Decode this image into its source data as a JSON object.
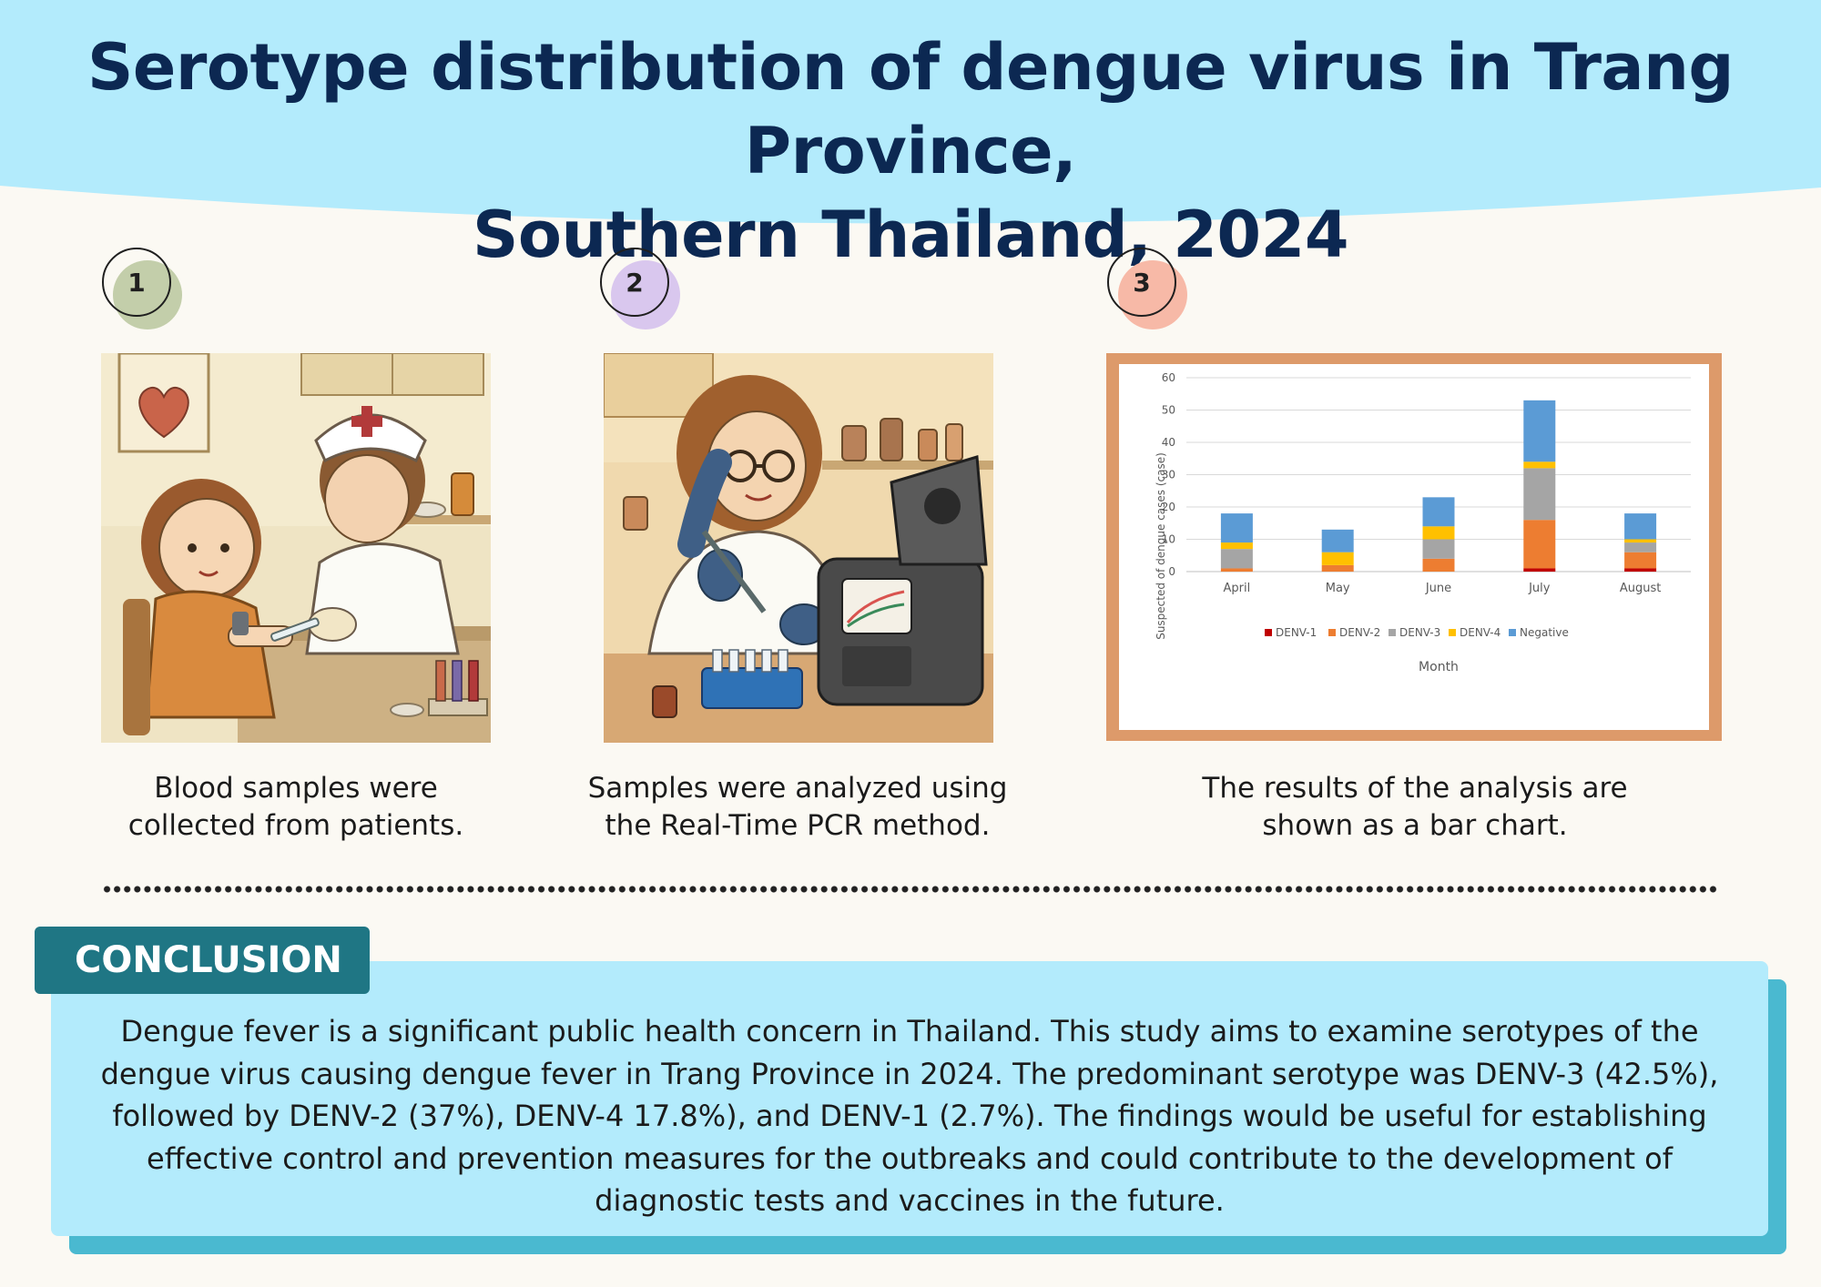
{
  "title": {
    "line1": "Serotype distribution of dengue virus in Trang Province,",
    "line2": "Southern Thailand, 2024"
  },
  "colors": {
    "header_bg": "#b3ebfc",
    "title": "#0c2852",
    "step1": "#c3ceaa",
    "step2": "#d9c7ee",
    "step3": "#f7b9a7",
    "conclusion_tab": "#1f7684",
    "conclusion_box": "#b3ebfc",
    "conclusion_shadow": "#4ab9d0",
    "chart_frame": "#dd9a6a"
  },
  "steps": [
    {
      "number": "1",
      "caption_line1": "Blood samples were",
      "caption_line2": "collected from patients.",
      "illustration": "nurse-drawing-blood-from-child"
    },
    {
      "number": "2",
      "caption_line1": "Samples were analyzed using",
      "caption_line2": "the Real-Time PCR method.",
      "illustration": "scientist-with-pcr-machine"
    },
    {
      "number": "3",
      "caption_line1": "The results of the analysis are",
      "caption_line2": "shown as a bar chart."
    }
  ],
  "chart_data": {
    "type": "bar",
    "stacked": true,
    "categories": [
      "April",
      "May",
      "June",
      "July",
      "August"
    ],
    "series": [
      {
        "name": "DENV-1",
        "color": "#c00000",
        "values": [
          0,
          0,
          0,
          1,
          1
        ]
      },
      {
        "name": "DENV-2",
        "color": "#ed7d31",
        "values": [
          1,
          2,
          4,
          15,
          5
        ]
      },
      {
        "name": "DENV-3",
        "color": "#a5a5a5",
        "values": [
          6,
          0,
          6,
          16,
          3
        ]
      },
      {
        "name": "DENV-4",
        "color": "#ffc000",
        "values": [
          2,
          4,
          4,
          2,
          1
        ]
      },
      {
        "name": "Negative",
        "color": "#5b9bd5",
        "values": [
          9,
          7,
          9,
          19,
          8
        ]
      }
    ],
    "yticks": [
      "0",
      "10",
      "20",
      "30",
      "40",
      "50",
      "60"
    ],
    "ylim": [
      0,
      60
    ],
    "xlabel": "Month",
    "ylabel": "Suspected of dengue cases (case)",
    "grid": true,
    "legend": "bottom"
  },
  "conclusion": {
    "heading": "CONCLUSION",
    "lines": [
      "Dengue fever is a significant public health concern in Thailand. This study aims to examine serotypes of the",
      "dengue virus causing dengue fever in Trang Province in 2024. The predominant serotype was DENV-3 (42.5%),",
      "followed by DENV-2 (37%), DENV-4 17.8%), and DENV-1 (2.7%). The findings would be useful for establishing",
      "effective control and prevention measures for the outbreaks and could contribute to the development of",
      "diagnostic tests and vaccines in the future."
    ]
  }
}
